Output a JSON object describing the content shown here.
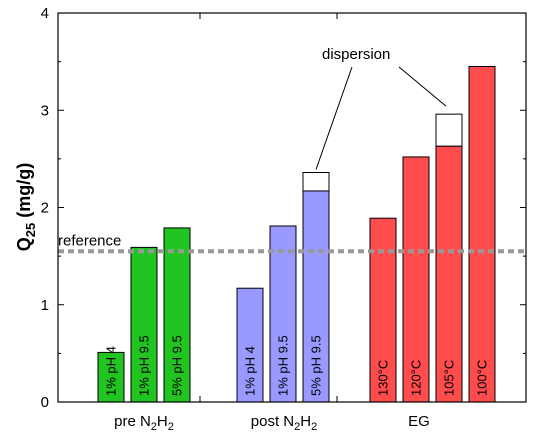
{
  "chart_data": {
    "type": "bar",
    "ylabel": {
      "main": "Q",
      "sub": "25",
      "unit": " (mg/g)"
    },
    "ylim": [
      0,
      4
    ],
    "yticks": [
      "0",
      "1",
      "2",
      "3",
      "4"
    ],
    "grid": false,
    "groups": [
      {
        "label": {
          "main": "pre N",
          "sub1": "2",
          "mid": "H",
          "sub2": "2"
        },
        "color": "#22c422"
      },
      {
        "label": {
          "main": "post N",
          "sub1": "2",
          "mid": "H",
          "sub2": "2"
        },
        "color": "#9999ff"
      },
      {
        "label": {
          "main": "EG",
          "sub1": "",
          "mid": "",
          "sub2": ""
        },
        "color": "#ff4d4d"
      }
    ],
    "bars": [
      {
        "group": 0,
        "label": "1% pH 4",
        "value": 0.51,
        "dispersion_top": null
      },
      {
        "group": 0,
        "label": "1% pH 9.5",
        "value": 1.59,
        "dispersion_top": null
      },
      {
        "group": 0,
        "label": "5% pH 9.5",
        "value": 1.79,
        "dispersion_top": null
      },
      {
        "group": 1,
        "label": "1% pH 4",
        "value": 1.17,
        "dispersion_top": null
      },
      {
        "group": 1,
        "label": "1% pH 9.5",
        "value": 1.81,
        "dispersion_top": null
      },
      {
        "group": 1,
        "label": "5% pH 9.5",
        "value": 2.17,
        "dispersion_top": 2.36
      },
      {
        "group": 2,
        "label": "130°C",
        "value": 1.89,
        "dispersion_top": null
      },
      {
        "group": 2,
        "label": "120°C",
        "value": 2.52,
        "dispersion_top": null
      },
      {
        "group": 2,
        "label": "105°C",
        "value": 2.63,
        "dispersion_top": 2.96
      },
      {
        "group": 2,
        "label": "100°C",
        "value": 3.45,
        "dispersion_top": null
      }
    ],
    "reference": {
      "label": "reference",
      "value": 1.55,
      "color": "#999999"
    },
    "annotation": {
      "text": "dispersion"
    }
  }
}
